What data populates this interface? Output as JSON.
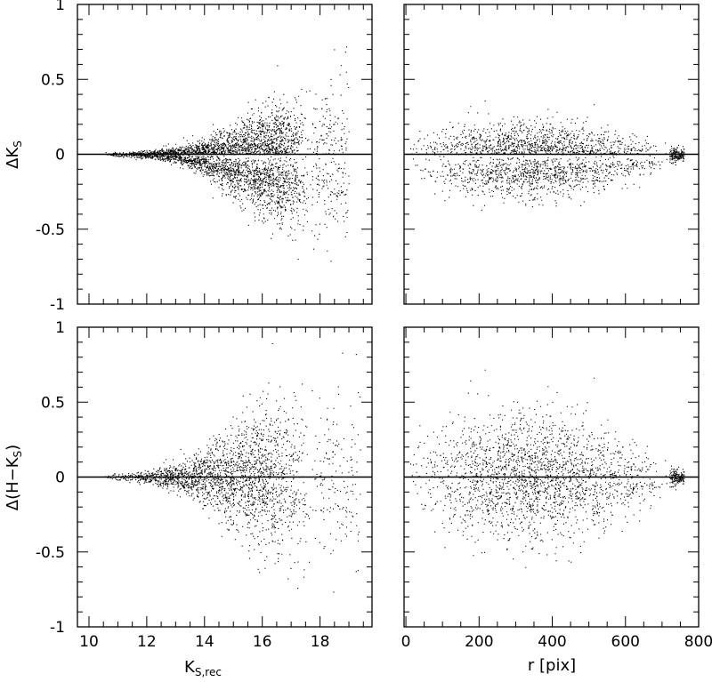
{
  "figure": {
    "bottom_left_xlabel": "K",
    "bottom_left_xlabel_sub": "S,rec",
    "bottom_right_xlabel": "r [pix]",
    "top_left_ylabel": "ΔK",
    "top_left_ylabel_sub": "S",
    "bottom_left_ylabel": "Δ(H−K",
    "bottom_left_ylabel_sub": "S",
    "bottom_left_ylabel_end": ")"
  },
  "chart_data": [
    {
      "type": "scatter",
      "panel": "top-left",
      "xlim": [
        9.6,
        19.8
      ],
      "ylim": [
        -1,
        1
      ],
      "xticks": [
        10,
        12,
        14,
        16,
        18
      ],
      "yticks": [
        -1,
        -0.5,
        0,
        0.5,
        1
      ],
      "ytick_labels": [
        "-1",
        "-0.5",
        "0",
        "0.5",
        "1"
      ],
      "show_xtick_labels": false,
      "show_ytick_labels": true,
      "reference_line_y": 0,
      "scatter_envelope": {
        "x": [
          10.5,
          12,
          13,
          14,
          15,
          16,
          17,
          17.6,
          18.5
        ],
        "sigma": [
          0.005,
          0.012,
          0.025,
          0.05,
          0.09,
          0.14,
          0.17,
          0.2,
          0.25
        ],
        "skew_low": [
          0.0,
          0.0,
          0.005,
          0.02,
          0.05,
          0.07,
          0.08,
          0.08,
          0.05
        ]
      },
      "n_points": 7000,
      "x_density": {
        "from": 10.4,
        "peak": 16.5,
        "cutoff": 17.7,
        "tail_to": 19.0
      }
    },
    {
      "type": "scatter",
      "panel": "top-right",
      "xlim": [
        -5,
        800
      ],
      "ylim": [
        -1,
        1
      ],
      "xticks": [
        0,
        200,
        400,
        600,
        800
      ],
      "yticks": [
        -1,
        -0.5,
        0,
        0.5,
        1
      ],
      "show_xtick_labels": false,
      "show_ytick_labels": false,
      "reference_line_y": 0,
      "scatter_envelope": {
        "x": [
          0,
          100,
          200,
          300,
          400,
          500,
          600,
          700,
          750
        ],
        "sigma": [
          0.05,
          0.09,
          0.1,
          0.1,
          0.1,
          0.09,
          0.07,
          0.04,
          0.02
        ],
        "skew_low": [
          0.03,
          0.04,
          0.05,
          0.05,
          0.05,
          0.04,
          0.03,
          0.01,
          0.0
        ]
      },
      "n_points": 8000,
      "x_density": {
        "from": 0,
        "peak": 350,
        "cutoff": 720,
        "tail_to": 760
      }
    },
    {
      "type": "scatter",
      "panel": "bottom-left",
      "xlim": [
        9.6,
        19.8
      ],
      "ylim": [
        -1,
        1
      ],
      "xticks": [
        10,
        12,
        14,
        16,
        18
      ],
      "xtick_labels": [
        "10",
        "12",
        "14",
        "16",
        "18"
      ],
      "yticks": [
        -1,
        -0.5,
        0,
        0.5,
        1
      ],
      "ytick_labels": [
        "-1",
        "-0.5",
        "0",
        "0.5",
        "1"
      ],
      "show_xtick_labels": true,
      "show_ytick_labels": true,
      "reference_line_y": 0,
      "scatter_envelope": {
        "x": [
          10.5,
          12,
          13,
          14,
          15,
          16,
          17,
          18,
          19
        ],
        "sigma": [
          0.008,
          0.02,
          0.045,
          0.09,
          0.16,
          0.22,
          0.26,
          0.28,
          0.3
        ],
        "skew_low": [
          0.0,
          0.0,
          0.0,
          0.0,
          0.0,
          0.0,
          0.0,
          0.0,
          0.0
        ]
      },
      "n_points": 11000,
      "x_density": {
        "from": 10.4,
        "peak": 16.0,
        "cutoff": 17.8,
        "tail_to": 19.4
      }
    },
    {
      "type": "scatter",
      "panel": "bottom-right",
      "xlim": [
        -5,
        800
      ],
      "ylim": [
        -1,
        1
      ],
      "xticks": [
        0,
        200,
        400,
        600,
        800
      ],
      "xtick_labels": [
        "0",
        "200",
        "400",
        "600",
        "800"
      ],
      "yticks": [
        -1,
        -0.5,
        0,
        0.5,
        1
      ],
      "show_xtick_labels": true,
      "show_ytick_labels": false,
      "reference_line_y": 0,
      "scatter_envelope": {
        "x": [
          0,
          100,
          200,
          300,
          400,
          500,
          600,
          700,
          750
        ],
        "sigma": [
          0.12,
          0.18,
          0.2,
          0.2,
          0.2,
          0.18,
          0.13,
          0.06,
          0.02
        ],
        "skew_low": [
          0,
          0,
          0,
          0,
          0,
          0,
          0,
          0,
          0
        ]
      },
      "n_points": 12000,
      "x_density": {
        "from": 0,
        "peak": 350,
        "cutoff": 720,
        "tail_to": 760
      }
    }
  ]
}
